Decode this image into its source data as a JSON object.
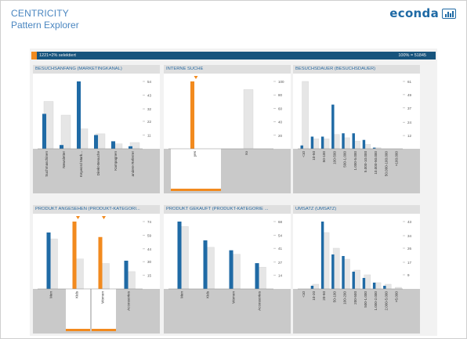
{
  "header": {
    "title": "CENTRICITY",
    "subtitle": "Pattern Explorer",
    "logo_text": "econda"
  },
  "selection_bar": {
    "left_label": "1221=2% selektiert",
    "right_label": "100% = 51845",
    "selected_fraction": 0.02
  },
  "colors": {
    "primary_bar": "#1f6aa5",
    "secondary_bar": "#e6e6e6",
    "highlight": "#f28a1e",
    "header_bar": "#17547d",
    "panel_title": "#2a6aa0"
  },
  "chart_data": [
    {
      "type": "bar",
      "title": "BESUCHSANFANG (MARKETINGKANAL)",
      "categories": [
        "Suchmaschinen",
        "Newsletter",
        "Keyword Mark...",
        "Direkt-Besuche",
        "Kampagnen",
        "andere Referrer"
      ],
      "ticks": [
        54,
        43,
        32,
        22,
        11
      ],
      "ylim": [
        0,
        54
      ],
      "series": [
        {
          "role": "primary",
          "values": [
            28,
            3,
            54,
            11,
            6,
            2
          ]
        },
        {
          "role": "background",
          "values": [
            38,
            27,
            16,
            12,
            4,
            5
          ]
        }
      ],
      "highlighted": []
    },
    {
      "type": "bar",
      "title": "INTERNE SUCHE",
      "categories": [
        "yes",
        "no"
      ],
      "ticks": [
        100,
        80,
        60,
        40,
        20
      ],
      "ylim": [
        0,
        100
      ],
      "series": [
        {
          "role": "primary",
          "values": [
            100,
            0
          ]
        },
        {
          "role": "background",
          "values": [
            0,
            88
          ]
        }
      ],
      "highlighted": [
        0
      ]
    },
    {
      "type": "bar",
      "title": "BESUCHSDAUER (BESUCHSDAUER)",
      "categories": [
        "<10",
        "10-50",
        "50-100",
        "100-500",
        "500-1.000",
        "1.000-5.000",
        "5.000-10.000",
        "10.000-50.000",
        "50.000-100.000",
        ">100.000"
      ],
      "ticks": [
        61,
        49,
        37,
        24,
        12
      ],
      "ylim": [
        0,
        61
      ],
      "series": [
        {
          "role": "primary",
          "values": [
            3,
            11,
            11,
            40,
            14,
            14,
            8,
            1,
            0,
            0
          ]
        },
        {
          "role": "background",
          "values": [
            61,
            9,
            9,
            13,
            10,
            7,
            4,
            1,
            0,
            0
          ]
        }
      ],
      "highlighted": []
    },
    {
      "type": "bar",
      "title": "PRODUKT ANGESEHEN (PRODUKT-KATEGORI...",
      "categories": [
        "Men",
        "Kids",
        "Women",
        "Accessories"
      ],
      "ticks": [
        74,
        59,
        44,
        30,
        15
      ],
      "ylim": [
        0,
        74
      ],
      "series": [
        {
          "role": "primary",
          "values": [
            62,
            74,
            57,
            31
          ]
        },
        {
          "role": "background",
          "values": [
            55,
            33,
            28,
            19
          ]
        }
      ],
      "highlighted": [
        1,
        2
      ]
    },
    {
      "type": "bar",
      "title": "PRODUKT GEKAUFT (PRODUKT-KATEGORIE ...",
      "categories": [
        "Men",
        "Kids",
        "Women",
        "Accessories"
      ],
      "ticks": [
        68,
        54,
        41,
        27,
        14
      ],
      "ylim": [
        0,
        68
      ],
      "series": [
        {
          "role": "primary",
          "values": [
            68,
            49,
            39,
            26
          ]
        },
        {
          "role": "background",
          "values": [
            63,
            42,
            35,
            22
          ]
        }
      ],
      "highlighted": []
    },
    {
      "type": "bar",
      "title": "UMSATZ (UMSATZ)",
      "categories": [
        "<10",
        "10-20",
        "20-50",
        "50-100",
        "100-200",
        "200-500",
        "500-1.000",
        "1.000-2.000",
        "2.000-5.000",
        ">5.000"
      ],
      "ticks": [
        43,
        34,
        26,
        17,
        9
      ],
      "ylim": [
        0,
        43
      ],
      "series": [
        {
          "role": "primary",
          "values": [
            0,
            2,
            43,
            22,
            21,
            11,
            7,
            4,
            2,
            0
          ]
        },
        {
          "role": "background",
          "values": [
            0,
            3,
            36,
            26,
            19,
            12,
            9,
            4,
            3,
            1
          ]
        }
      ],
      "highlighted": []
    }
  ]
}
